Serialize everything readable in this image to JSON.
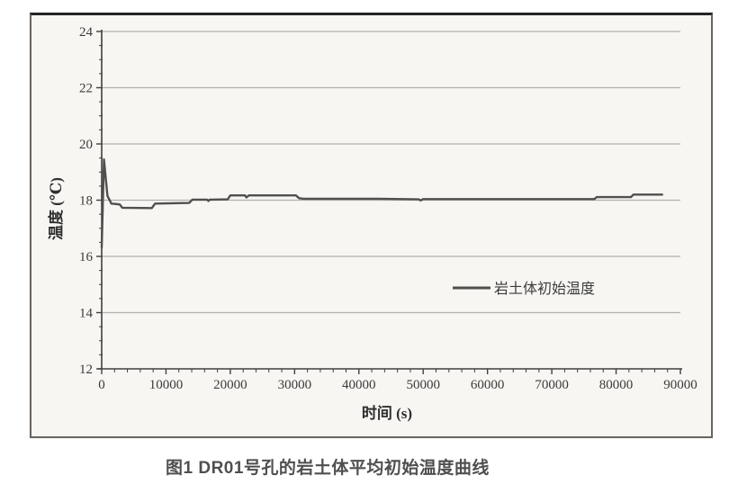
{
  "figure": {
    "caption": "图1 DR01号孔的岩土体平均初始温度曲线"
  },
  "colors": {
    "paper": "#f7f6f3",
    "frame_border": "#6b6560",
    "frame_border_top": "#242424",
    "grid": "#b3b1ad",
    "axis": "#3f3f3f",
    "line": "#4f4f4f",
    "caption_text": "#4f4f4f"
  },
  "chart_data": {
    "type": "line",
    "title": "",
    "xlabel": "时间 (s)",
    "ylabel": "温度 (℃)",
    "xlim": [
      0,
      90000
    ],
    "ylim": [
      12,
      24
    ],
    "x_ticks": [
      0,
      10000,
      20000,
      30000,
      40000,
      50000,
      60000,
      70000,
      80000,
      90000
    ],
    "x_tick_labels": [
      "0",
      "10000",
      "20000",
      "30000",
      "40000",
      "50000",
      "60000",
      "70000",
      "80000",
      "90000"
    ],
    "y_ticks": [
      12,
      14,
      16,
      18,
      20,
      22,
      24
    ],
    "y_tick_labels": [
      "12",
      "14",
      "16",
      "18",
      "20",
      "22",
      "24"
    ],
    "x_minor_step": 2000,
    "y_minor_step": 0.5,
    "grid": "horizontal-major",
    "legend": {
      "position": "inside-right",
      "entries": [
        {
          "label": "岩土体初始温度",
          "color": "#4f4f4f"
        }
      ]
    },
    "series": [
      {
        "name": "岩土体初始温度",
        "color": "#4f4f4f",
        "points": [
          [
            0,
            16.3
          ],
          [
            350,
            19.45
          ],
          [
            900,
            18.15
          ],
          [
            1300,
            17.97
          ],
          [
            1500,
            17.88
          ],
          [
            2800,
            17.85
          ],
          [
            3200,
            17.73
          ],
          [
            7800,
            17.72
          ],
          [
            8300,
            17.88
          ],
          [
            13600,
            17.9
          ],
          [
            14100,
            18.02
          ],
          [
            16400,
            18.02
          ],
          [
            16600,
            17.97
          ],
          [
            16800,
            18.02
          ],
          [
            19600,
            18.03
          ],
          [
            20000,
            18.17
          ],
          [
            22300,
            18.17
          ],
          [
            22500,
            18.1
          ],
          [
            22900,
            18.17
          ],
          [
            30200,
            18.17
          ],
          [
            30700,
            18.07
          ],
          [
            31400,
            18.05
          ],
          [
            43000,
            18.05
          ],
          [
            49300,
            18.03
          ],
          [
            49600,
            17.99
          ],
          [
            50000,
            18.04
          ],
          [
            76600,
            18.04
          ],
          [
            77000,
            18.11
          ],
          [
            82300,
            18.11
          ],
          [
            82700,
            18.2
          ],
          [
            87300,
            18.2
          ]
        ]
      }
    ]
  }
}
